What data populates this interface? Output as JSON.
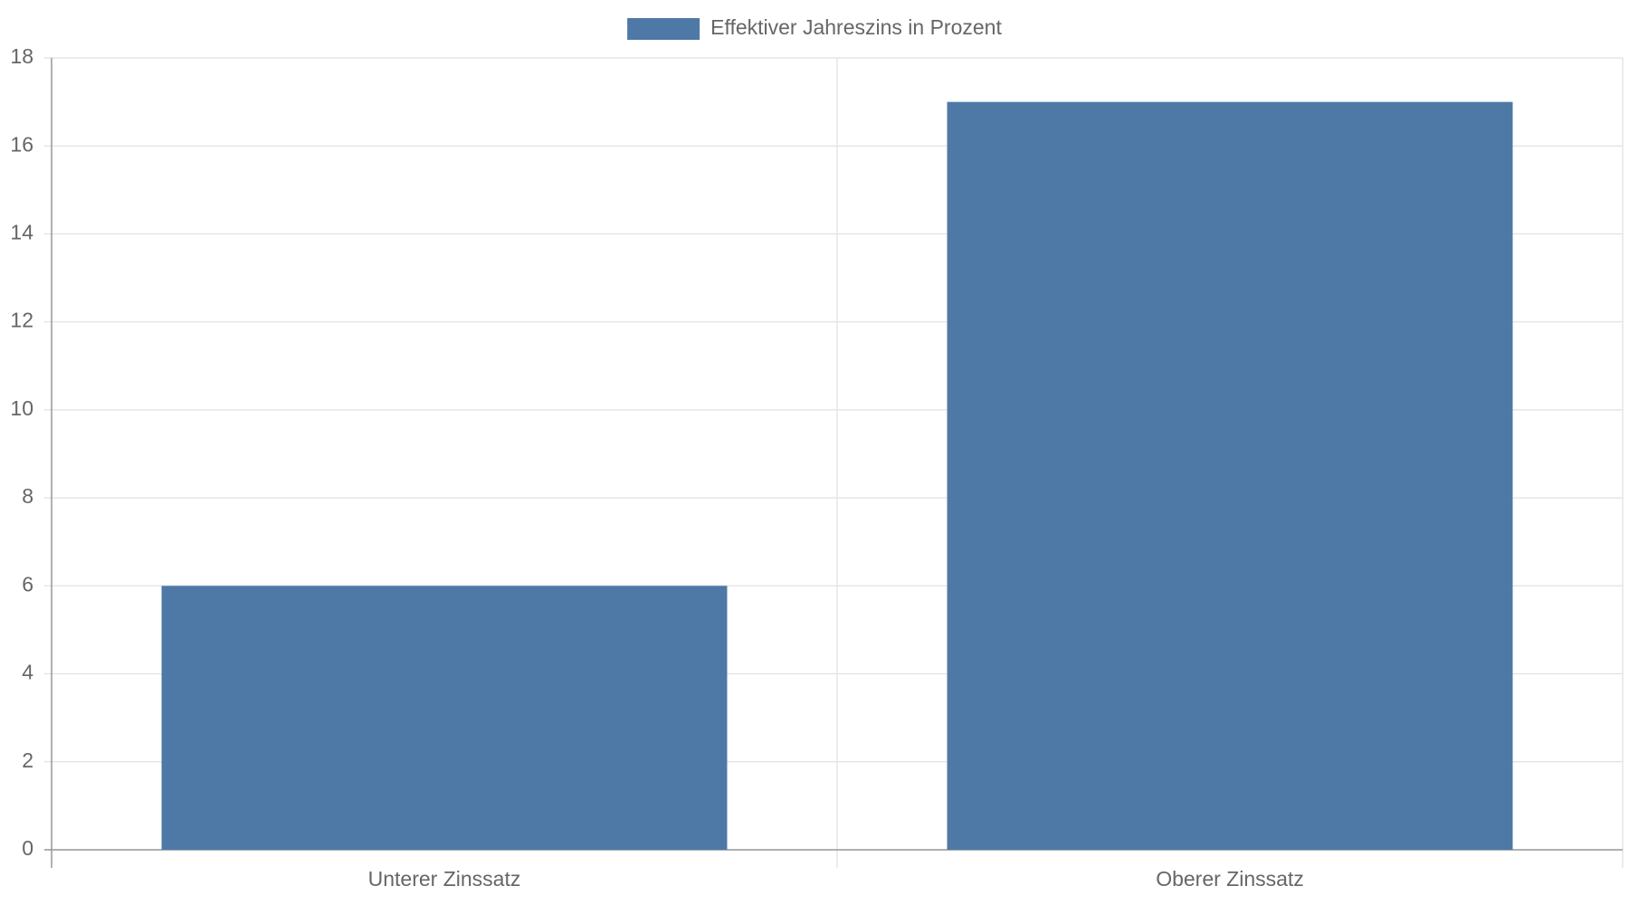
{
  "chart_data": {
    "type": "bar",
    "categories": [
      "Unterer Zinssatz",
      "Oberer Zinssatz"
    ],
    "series": [
      {
        "name": "Effektiver Jahreszins in Prozent",
        "color": "#4e79a7",
        "values": [
          6,
          17
        ]
      }
    ],
    "ylim": [
      0,
      18
    ],
    "yticks": [
      0,
      2,
      4,
      6,
      8,
      10,
      12,
      14,
      16,
      18
    ],
    "grid": true,
    "legend": "top"
  }
}
